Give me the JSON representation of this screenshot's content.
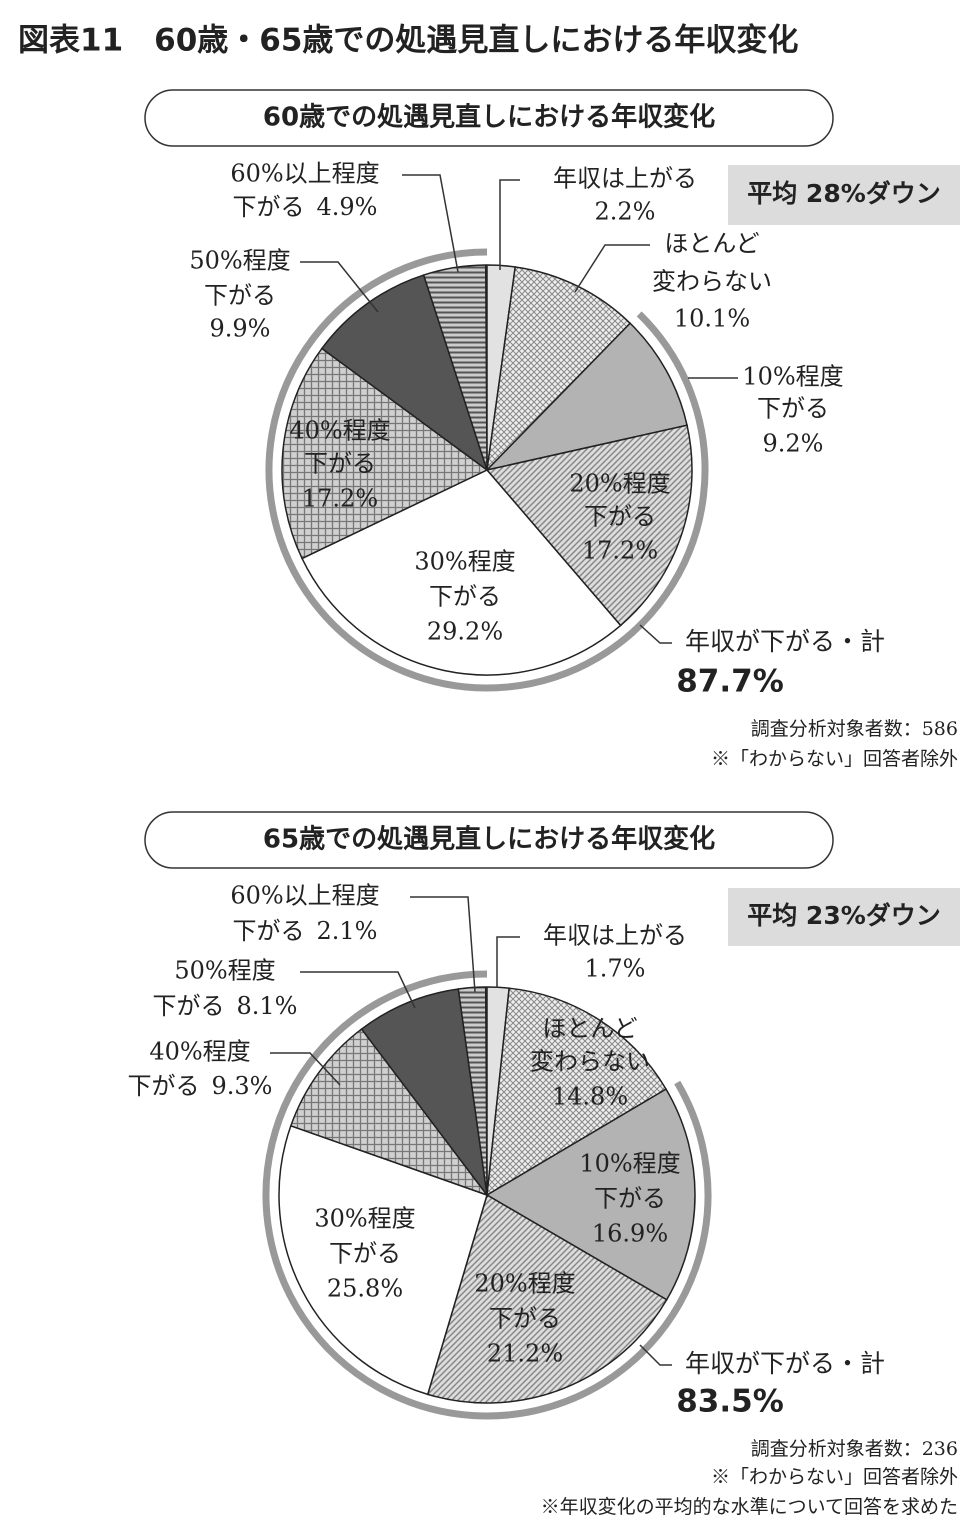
{
  "title": "図表11　60歳・65歳での処遇見直しにおける年収変化",
  "chart_data": [
    {
      "type": "pie",
      "title": "60歳での処遇見直しにおける年収変化",
      "categories": [
        [
          "年収は上がる"
        ],
        [
          "ほとんど",
          "変わらない"
        ],
        [
          "10%程度",
          "下がる"
        ],
        [
          "20%程度",
          "下がる"
        ],
        [
          "30%程度",
          "下がる"
        ],
        [
          "40%程度",
          "下がる"
        ],
        [
          "50%程度",
          "下がる"
        ],
        [
          "60%以上程度",
          "下がる"
        ]
      ],
      "values": [
        2.2,
        10.1,
        9.2,
        17.2,
        29.2,
        17.2,
        9.9,
        4.9
      ],
      "value_labels": [
        "2.2%",
        "10.1%",
        "9.2%",
        "17.2%",
        "29.2%",
        "17.2%",
        "9.9%",
        "4.9%"
      ],
      "colors": [
        "#e2e2e2",
        "url(#p-dots)",
        "#b3b3b3",
        "url(#p-diag)",
        "#ffffff",
        "url(#p-cross)",
        "#555555",
        "url(#p-hstripe)"
      ],
      "average": "平均 28%ダウン",
      "total_label": "年収が下がる・計",
      "total": {
        "value": 87.7,
        "label": "87.7%"
      },
      "notes": [
        "調査分析対象者数：586",
        "※「わからない」回答者除外"
      ]
    },
    {
      "type": "pie",
      "title": "65歳での処遇見直しにおける年収変化",
      "categories": [
        [
          "年収は上がる"
        ],
        [
          "ほとんど",
          "変わらない"
        ],
        [
          "10%程度",
          "下がる"
        ],
        [
          "20%程度",
          "下がる"
        ],
        [
          "30%程度",
          "下がる"
        ],
        [
          "40%程度",
          "下がる"
        ],
        [
          "50%程度",
          "下がる"
        ],
        [
          "60%以上程度",
          "下がる"
        ]
      ],
      "values": [
        1.7,
        14.8,
        16.9,
        21.2,
        25.8,
        9.3,
        8.1,
        2.1
      ],
      "value_labels": [
        "1.7%",
        "14.8%",
        "16.9%",
        "21.2%",
        "25.8%",
        "9.3%",
        "8.1%",
        "2.1%"
      ],
      "colors": [
        "#e2e2e2",
        "url(#p-dots)",
        "#b3b3b3",
        "url(#p-diag)",
        "#ffffff",
        "url(#p-cross)",
        "#555555",
        "url(#p-hstripe)"
      ],
      "average": "平均 23%ダウン",
      "total_label": "年収が下がる・計",
      "total": {
        "value": 83.5,
        "label": "83.5%"
      },
      "notes": [
        "調査分析対象者数：236",
        "※「わからない」回答者除外",
        "※年収変化の平均的な水準について回答を求めた"
      ]
    }
  ]
}
